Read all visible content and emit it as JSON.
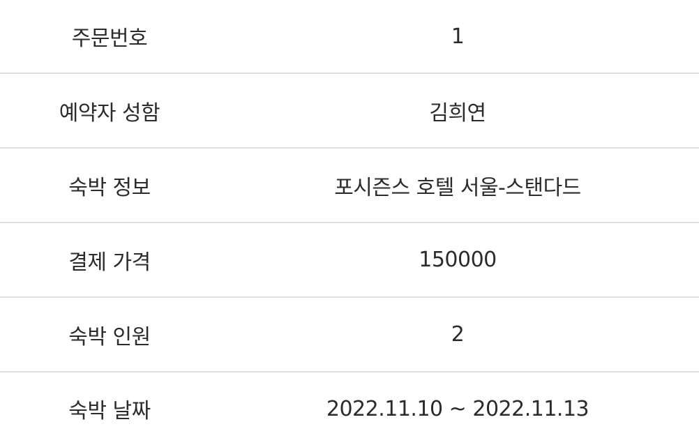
{
  "order": {
    "rows": [
      {
        "label": "주문번호",
        "value": "1"
      },
      {
        "label": "예약자 성함",
        "value": "김희연"
      },
      {
        "label": "숙박 정보",
        "value": "포시즌스 호텔 서울-스탠다드"
      },
      {
        "label": "결제 가격",
        "value": "150000"
      },
      {
        "label": "숙박 인원",
        "value": "2"
      },
      {
        "label": "숙박 날짜",
        "value": "2022.11.10 ~ 2022.11.13"
      }
    ]
  },
  "colors": {
    "text": "#2b2b2b",
    "divider": "#dedede",
    "background": "#ffffff"
  }
}
